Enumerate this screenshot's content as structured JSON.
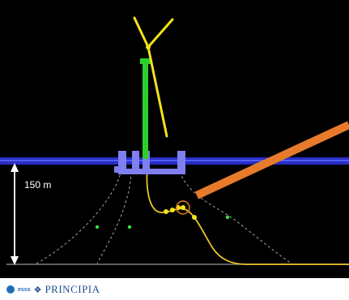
{
  "diagram": {
    "depth_label": "150 m",
    "colors": {
      "background": "#000000",
      "water_surface": "#2a2fd0",
      "platform": "#7f7ff0",
      "tower": "#29d12a",
      "blades": "#f2e31c",
      "cable": "#e8c62a",
      "mooring_lines": "#cfe3cf",
      "anchor_points": "#3ce23c",
      "pipe": "#e77b2b",
      "seabed": "#9a9a9a"
    }
  },
  "footer": {
    "logo_small": "esss",
    "logo_star": "❖",
    "logo_text": "PRINCIPIA"
  }
}
